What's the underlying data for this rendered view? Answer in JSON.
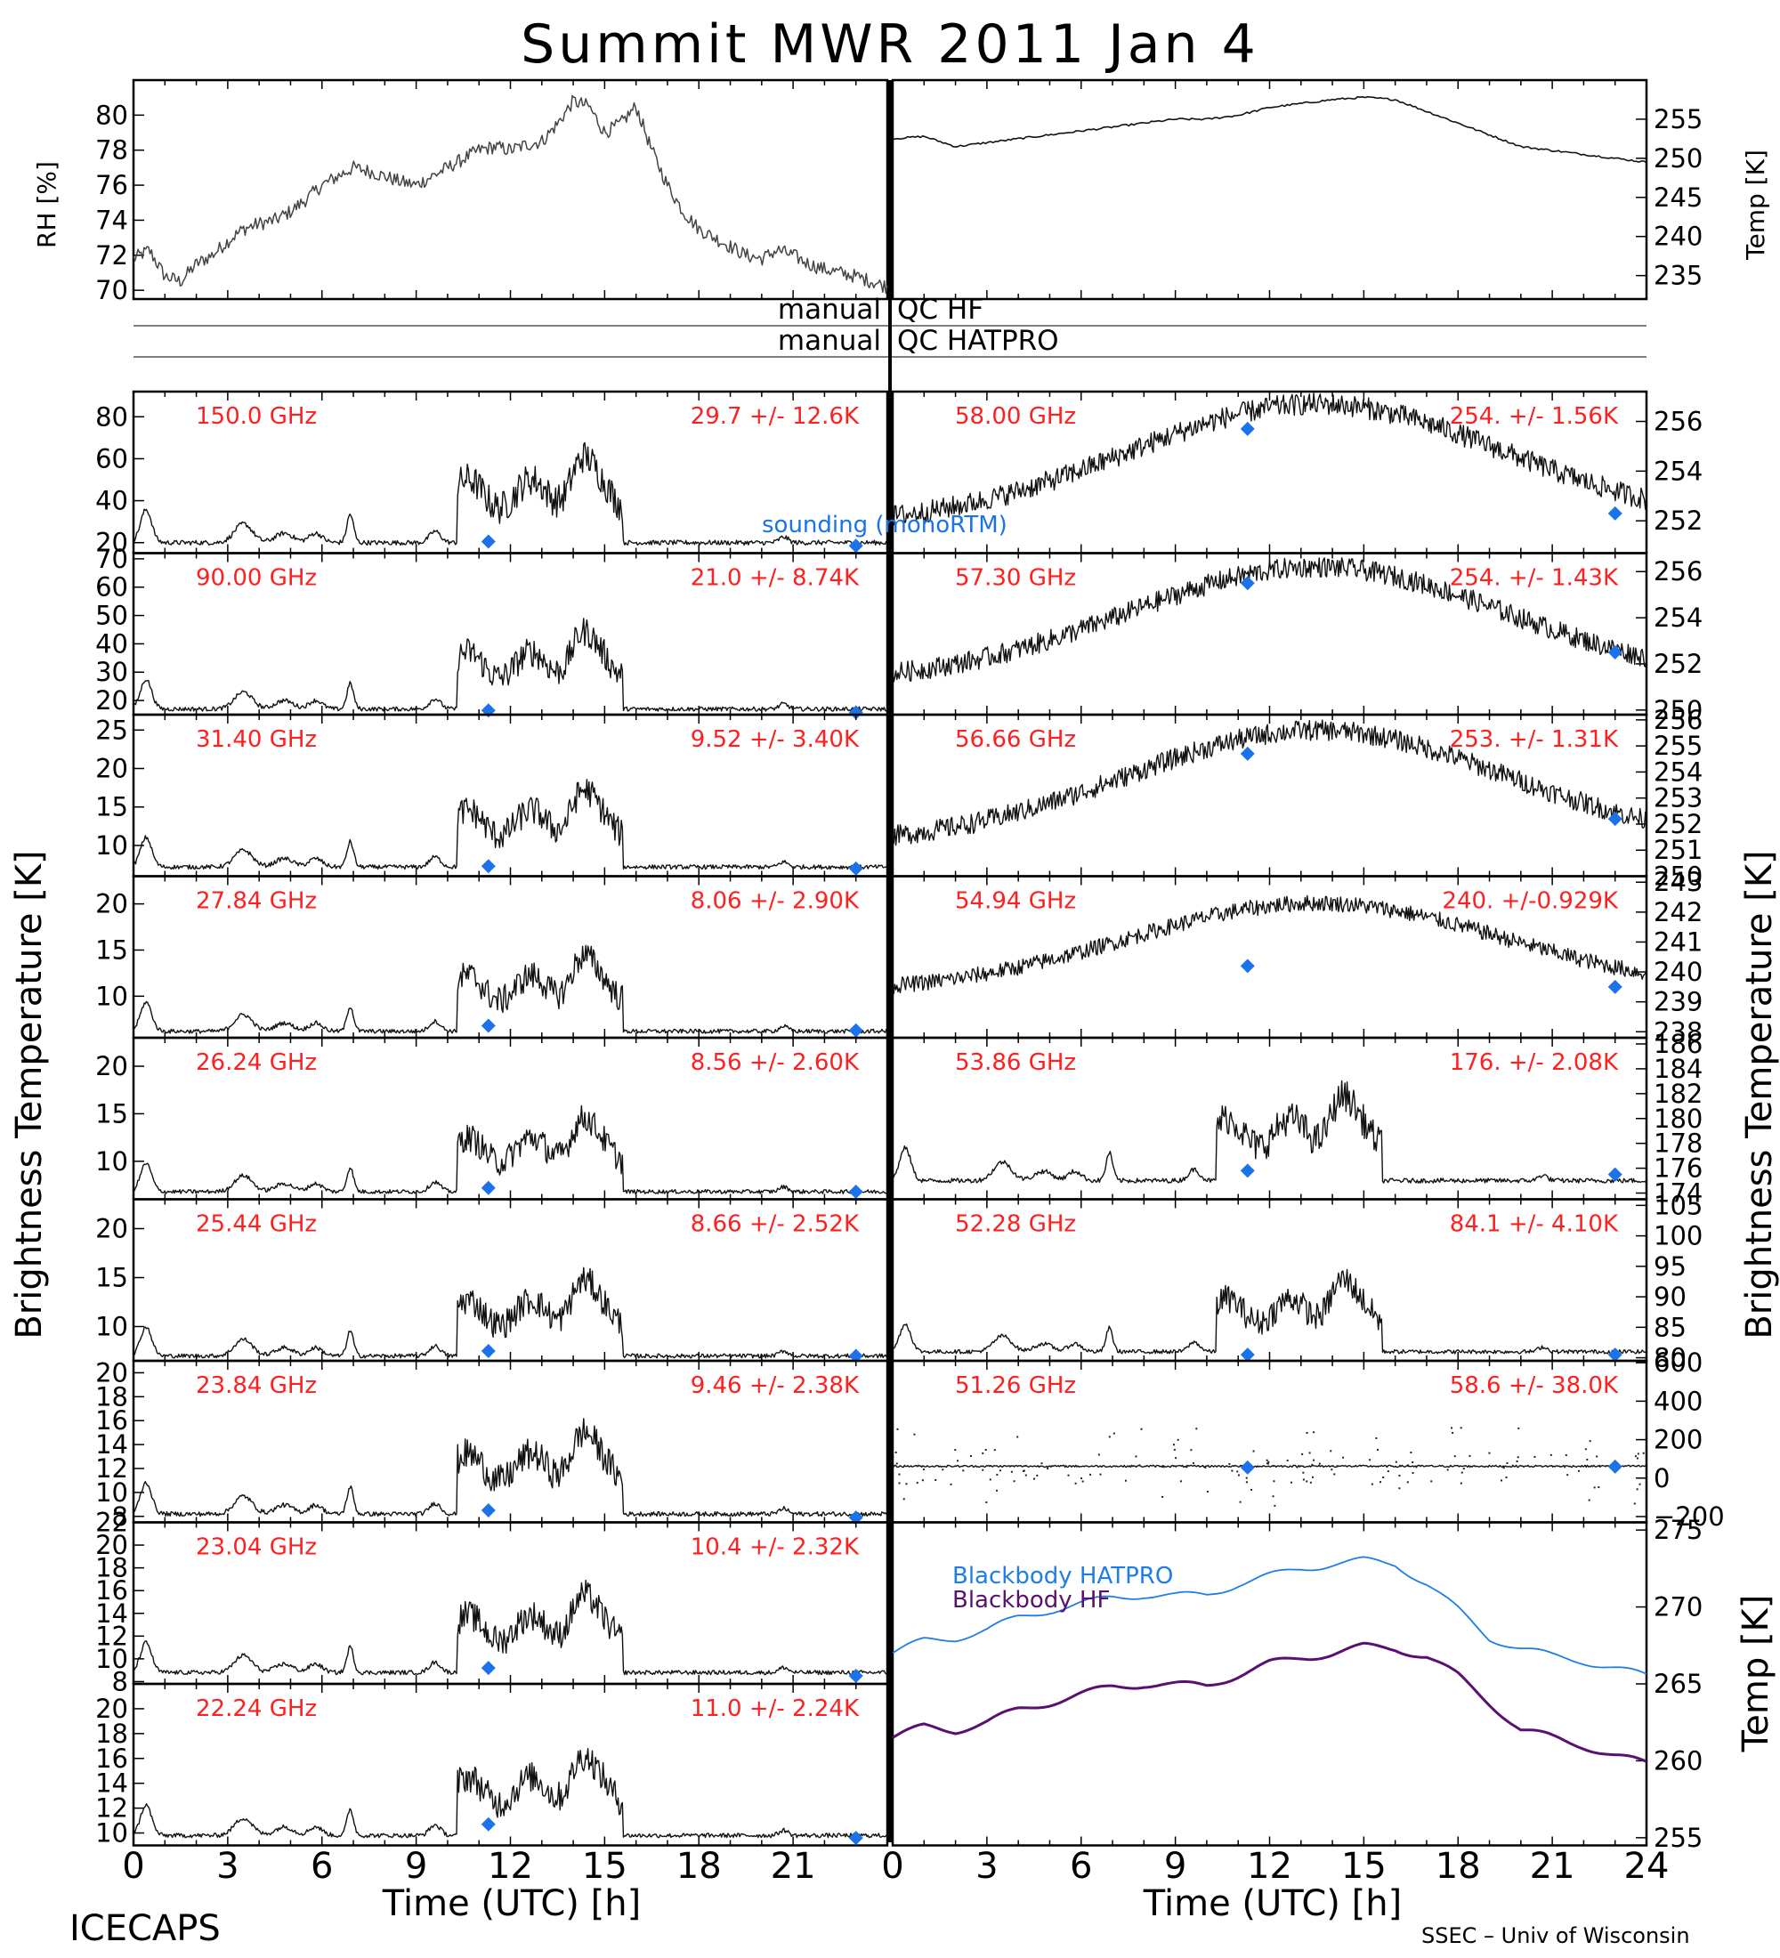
{
  "page": {
    "title": "Summit MWR 2011 Jan  4",
    "footer_left": "ICECAPS",
    "footer_right": "SSEC – Univ of Wisconsin"
  },
  "axes_text": {
    "rh_label": "RH [%]",
    "temp_label": "Temp [K]",
    "tb_label": "Brightness Temperature [K]",
    "time_label": "Time (UTC) [h]",
    "qc_hf_left": "manual",
    "qc_hf_right": "QC HF",
    "qc_hatpro_left": "manual",
    "qc_hatpro_right": "QC HATPRO",
    "sounding_label": "sounding (monoRTM)"
  },
  "colors": {
    "channel_text": "#ff1f1f",
    "sounding": "#1a73e8",
    "bb_hatpro": "#1e7de8",
    "bb_hf": "#5a1070",
    "trace": "#111111"
  },
  "chart_data": {
    "type": "line",
    "x_ticks": [
      "0",
      "3",
      "6",
      "9",
      "12",
      "15",
      "18",
      "21",
      "24"
    ],
    "x_ticks_left": [
      "0",
      "3",
      "6",
      "9",
      "12",
      "15",
      "18",
      "21"
    ],
    "xlim": [
      0,
      24
    ],
    "top": {
      "rh": {
        "ylim": [
          69.5,
          82.0
        ],
        "y_ticks": [
          "70",
          "72",
          "74",
          "76",
          "78",
          "80"
        ],
        "tick_values": [
          70,
          72,
          74,
          76,
          78,
          80
        ],
        "x": [
          0,
          0.5,
          1,
          1.5,
          2,
          2.5,
          3,
          3.5,
          4,
          4.5,
          5,
          5.5,
          6,
          6.5,
          7,
          7.5,
          8,
          8.5,
          9,
          9.5,
          10,
          10.5,
          11,
          11.5,
          12,
          12.5,
          13,
          13.5,
          14,
          14.5,
          15,
          15.5,
          16,
          16.5,
          17,
          17.5,
          18,
          18.5,
          19,
          19.5,
          20,
          20.5,
          21,
          21.5,
          22,
          22.5,
          23,
          23.5,
          24
        ],
        "y": [
          71.8,
          72.3,
          70.8,
          70.5,
          71.5,
          72.0,
          72.8,
          73.5,
          73.8,
          74.0,
          74.5,
          75.2,
          76.0,
          76.5,
          77.0,
          76.8,
          76.5,
          76.2,
          76.0,
          76.5,
          77.0,
          77.5,
          78.0,
          78.2,
          78.0,
          78.3,
          78.5,
          79.5,
          80.8,
          80.5,
          79.0,
          79.5,
          80.5,
          78.0,
          76.0,
          74.5,
          73.5,
          73.0,
          72.5,
          72.0,
          71.8,
          72.3,
          72.0,
          71.5,
          71.2,
          71.0,
          70.8,
          70.5,
          70.2
        ]
      },
      "temp": {
        "ylim": [
          232,
          260
        ],
        "y_ticks": [
          "235",
          "240",
          "245",
          "250",
          "255"
        ],
        "tick_values": [
          235,
          240,
          245,
          250,
          255
        ],
        "x": [
          0,
          1,
          2,
          3,
          4,
          5,
          6,
          7,
          8,
          9,
          10,
          11,
          12,
          13,
          14,
          15,
          16,
          17,
          18,
          19,
          20,
          21,
          22,
          23,
          24
        ],
        "y": [
          252.5,
          252.8,
          251.5,
          252.0,
          252.5,
          253.0,
          253.5,
          254.0,
          254.5,
          255.0,
          255.0,
          255.5,
          256.5,
          257.0,
          257.5,
          257.8,
          257.5,
          256.0,
          254.5,
          253.0,
          251.5,
          251.0,
          250.5,
          250.0,
          249.5
        ]
      }
    },
    "panels": [
      {
        "side": "left",
        "row": 0,
        "freq": "150.0 GHz",
        "stat": "29.7 +/-  12.6K",
        "ylim": [
          15,
          92
        ],
        "y_ticks": [
          "20",
          "40",
          "60",
          "80"
        ],
        "tick_values": [
          20,
          40,
          60,
          80
        ],
        "base": 20,
        "amp": 45,
        "sounding": [
          [
            11.3,
            20.5
          ],
          [
            23.0,
            18.5
          ]
        ]
      },
      {
        "side": "left",
        "row": 1,
        "freq": "90.00 GHz",
        "stat": "21.0 +/-  8.74K",
        "ylim": [
          15,
          72
        ],
        "y_ticks": [
          "20",
          "30",
          "40",
          "50",
          "60",
          "70"
        ],
        "tick_values": [
          20,
          30,
          40,
          50,
          60,
          70
        ],
        "base": 17,
        "amp": 30,
        "sounding": [
          [
            11.3,
            16.5
          ],
          [
            23.0,
            15.8
          ]
        ]
      },
      {
        "side": "left",
        "row": 2,
        "freq": "31.40 GHz",
        "stat": "9.52 +/- 3.40K",
        "ylim": [
          6,
          27
        ],
        "y_ticks": [
          "10",
          "15",
          "20",
          "25"
        ],
        "tick_values": [
          10,
          15,
          20,
          25
        ],
        "base": 7.2,
        "amp": 11,
        "sounding": [
          [
            11.3,
            7.3
          ],
          [
            23.0,
            7.0
          ]
        ]
      },
      {
        "side": "left",
        "row": 3,
        "freq": "27.84 GHz",
        "stat": "8.06 +/- 2.90K",
        "ylim": [
          5.5,
          23
        ],
        "y_ticks": [
          "10",
          "15",
          "20"
        ],
        "tick_values": [
          10,
          15,
          20
        ],
        "base": 6.2,
        "amp": 9,
        "sounding": [
          [
            11.3,
            6.8
          ],
          [
            23.0,
            6.3
          ]
        ]
      },
      {
        "side": "left",
        "row": 4,
        "freq": "26.24 GHz",
        "stat": "8.56 +/- 2.60K",
        "ylim": [
          6,
          23
        ],
        "y_ticks": [
          "10",
          "15",
          "20"
        ],
        "tick_values": [
          10,
          15,
          20
        ],
        "base": 6.8,
        "amp": 8.5,
        "sounding": [
          [
            11.3,
            7.2
          ],
          [
            23.0,
            6.8
          ]
        ]
      },
      {
        "side": "left",
        "row": 5,
        "freq": "25.44 GHz",
        "stat": "8.66 +/- 2.52K",
        "ylim": [
          6.5,
          23
        ],
        "y_ticks": [
          "10",
          "15",
          "20"
        ],
        "tick_values": [
          10,
          15,
          20
        ],
        "base": 7.0,
        "amp": 8.5,
        "sounding": [
          [
            11.3,
            7.5
          ],
          [
            23.0,
            7.0
          ]
        ]
      },
      {
        "side": "left",
        "row": 6,
        "freq": "23.84 GHz",
        "stat": "9.46 +/- 2.38K",
        "ylim": [
          7.5,
          21
        ],
        "y_ticks": [
          "8",
          "10",
          "12",
          "14",
          "16",
          "18",
          "20"
        ],
        "tick_values": [
          8,
          10,
          12,
          14,
          16,
          18,
          20
        ],
        "base": 8.2,
        "amp": 7.5,
        "sounding": [
          [
            11.3,
            8.5
          ],
          [
            23.0,
            7.9
          ]
        ]
      },
      {
        "side": "left",
        "row": 7,
        "freq": "23.04 GHz",
        "stat": "10.4 +/- 2.32K",
        "ylim": [
          7.8,
          22
        ],
        "y_ticks": [
          "8",
          "10",
          "12",
          "14",
          "16",
          "18",
          "20",
          "22"
        ],
        "tick_values": [
          8,
          10,
          12,
          14,
          16,
          18,
          20,
          22
        ],
        "base": 8.8,
        "amp": 7.5,
        "sounding": [
          [
            11.3,
            9.2
          ],
          [
            23.0,
            8.5
          ]
        ]
      },
      {
        "side": "left",
        "row": 8,
        "freq": "22.24 GHz",
        "stat": "11.0 +/- 2.24K",
        "ylim": [
          9,
          22
        ],
        "y_ticks": [
          "10",
          "12",
          "14",
          "16",
          "18",
          "20"
        ],
        "tick_values": [
          10,
          12,
          14,
          16,
          18,
          20
        ],
        "base": 9.8,
        "amp": 7.0,
        "sounding": [
          [
            11.3,
            10.7
          ],
          [
            23.0,
            9.6
          ]
        ]
      },
      {
        "side": "right",
        "row": 0,
        "freq": "58.00 GHz",
        "stat": "254.  +/- 1.56K",
        "ylim": [
          250.7,
          257.2
        ],
        "y_ticks": [
          "252",
          "254",
          "256"
        ],
        "tick_values": [
          252,
          254,
          256
        ],
        "kind": "temp",
        "lo": 251.8,
        "hi": 256.7,
        "sounding": [
          [
            11.3,
            255.7
          ],
          [
            23.0,
            252.3
          ]
        ]
      },
      {
        "side": "right",
        "row": 1,
        "freq": "57.30 GHz",
        "stat": "254.  +/- 1.43K",
        "ylim": [
          249.8,
          256.8
        ],
        "y_ticks": [
          "250",
          "252",
          "254",
          "256"
        ],
        "tick_values": [
          250,
          252,
          254,
          256
        ],
        "kind": "temp",
        "lo": 251.2,
        "hi": 256.2,
        "sounding": [
          [
            11.3,
            255.5
          ],
          [
            23.0,
            252.5
          ]
        ]
      },
      {
        "side": "right",
        "row": 2,
        "freq": "56.66 GHz",
        "stat": "253.  +/- 1.31K",
        "ylim": [
          250,
          256.2
        ],
        "y_ticks": [
          "250",
          "251",
          "252",
          "253",
          "254",
          "255",
          "256"
        ],
        "tick_values": [
          250,
          251,
          252,
          253,
          254,
          255,
          256
        ],
        "kind": "temp",
        "lo": 251.2,
        "hi": 255.6,
        "sounding": [
          [
            11.3,
            254.7
          ],
          [
            23.0,
            252.2
          ]
        ]
      },
      {
        "side": "right",
        "row": 3,
        "freq": "54.94 GHz",
        "stat": "240.  +/-0.929K",
        "ylim": [
          237.8,
          243.2
        ],
        "y_ticks": [
          "238",
          "239",
          "240",
          "241",
          "242",
          "243"
        ],
        "tick_values": [
          238,
          239,
          240,
          241,
          242,
          243
        ],
        "kind": "temp",
        "lo": 239.3,
        "hi": 242.3,
        "sounding": [
          [
            11.3,
            240.2
          ],
          [
            23.0,
            239.5
          ]
        ]
      },
      {
        "side": "right",
        "row": 4,
        "freq": "53.86 GHz",
        "stat": "176.  +/- 2.08K",
        "ylim": [
          173.5,
          186.5
        ],
        "y_ticks": [
          "174",
          "176",
          "178",
          "180",
          "182",
          "184",
          "186"
        ],
        "tick_values": [
          174,
          176,
          178,
          180,
          182,
          184,
          186
        ],
        "kind": "bt",
        "base": 175,
        "amp": 7.5,
        "sounding": [
          [
            11.3,
            175.8
          ],
          [
            23.0,
            175.5
          ]
        ]
      },
      {
        "side": "right",
        "row": 5,
        "freq": "52.28 GHz",
        "stat": "84.1 +/- 4.10K",
        "ylim": [
          79.5,
          106
        ],
        "y_ticks": [
          "80",
          "85",
          "90",
          "95",
          "100",
          "105"
        ],
        "tick_values": [
          80,
          85,
          90,
          95,
          100,
          105
        ],
        "kind": "bt",
        "base": 81,
        "amp": 13,
        "sounding": [
          [
            11.3,
            80.5
          ],
          [
            23.0,
            80.5
          ]
        ]
      },
      {
        "side": "right",
        "row": 6,
        "freq": "51.26 GHz",
        "stat": "58.6 +/- 38.0K",
        "ylim": [
          -230,
          610
        ],
        "y_ticks": [
          "−200",
          "0",
          "200",
          "400",
          "600"
        ],
        "tick_values": [
          -200,
          0,
          200,
          400,
          600
        ],
        "kind": "noise",
        "base": 62,
        "sounding": [
          [
            11.3,
            55
          ],
          [
            23.0,
            60
          ]
        ]
      }
    ],
    "blackbody": {
      "ylim": [
        254.5,
        275.5
      ],
      "y_ticks": [
        "255",
        "260",
        "265",
        "270",
        "275"
      ],
      "tick_values": [
        255,
        260,
        265,
        270,
        275
      ],
      "series": [
        {
          "name": "Blackbody HATPRO",
          "x": [
            0,
            1,
            2,
            3,
            4,
            5,
            6,
            7,
            8,
            9,
            10,
            11,
            12,
            13,
            14,
            15,
            16,
            17,
            18,
            19,
            20,
            21,
            22,
            23,
            24
          ],
          "y": [
            267.0,
            267.8,
            268.0,
            268.5,
            269.3,
            269.8,
            270.2,
            270.6,
            270.8,
            270.7,
            270.8,
            271.5,
            272.0,
            272.5,
            272.8,
            273.0,
            272.8,
            271.5,
            269.8,
            268.0,
            267.3,
            266.8,
            266.5,
            266.0,
            265.5
          ]
        },
        {
          "name": "Blackbody HF",
          "x": [
            0,
            1,
            2,
            3,
            4,
            5,
            6,
            7,
            8,
            9,
            10,
            11,
            12,
            13,
            14,
            15,
            16,
            17,
            18,
            19,
            20,
            21,
            22,
            23,
            24
          ],
          "y": [
            261.5,
            262.2,
            262.0,
            262.5,
            263.3,
            263.8,
            264.3,
            264.8,
            265.0,
            264.9,
            264.9,
            265.6,
            266.3,
            266.7,
            267.0,
            267.4,
            267.3,
            266.8,
            265.5,
            263.8,
            262.0,
            261.5,
            261.0,
            260.3,
            259.8
          ]
        }
      ]
    }
  }
}
